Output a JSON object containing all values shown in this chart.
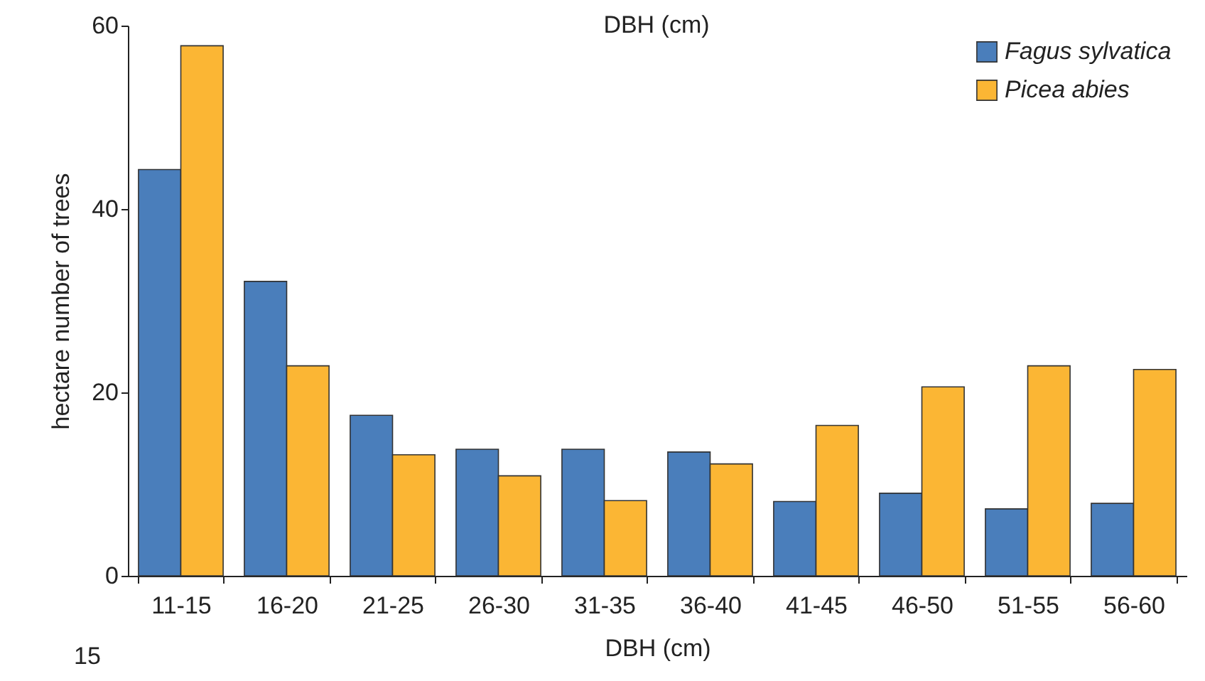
{
  "chart_data": {
    "type": "bar",
    "xlabel": "DBH (cm)",
    "ylabel": "hectare number of trees",
    "annotations": [
      "DBH (cm)",
      "15"
    ],
    "categories": [
      "11-15",
      "16-20",
      "21-25",
      "26-30",
      "31-35",
      "36-40",
      "41-45",
      "46-50",
      "51-55",
      "56-60"
    ],
    "series": [
      {
        "name": "Fagus sylvatica",
        "color": "#4a7ebb",
        "values": [
          44.3,
          32.1,
          17.5,
          13.8,
          13.8,
          13.5,
          8.1,
          9.0,
          7.3,
          7.9
        ]
      },
      {
        "name": "Picea abies",
        "color": "#fbb634",
        "values": [
          57.8,
          22.9,
          13.2,
          10.9,
          8.2,
          12.2,
          16.4,
          20.6,
          22.9,
          22.5
        ]
      }
    ],
    "ylim": [
      0,
      60
    ],
    "yticks": [
      0,
      20,
      40,
      60
    ],
    "grid": false,
    "legend": "top right"
  }
}
